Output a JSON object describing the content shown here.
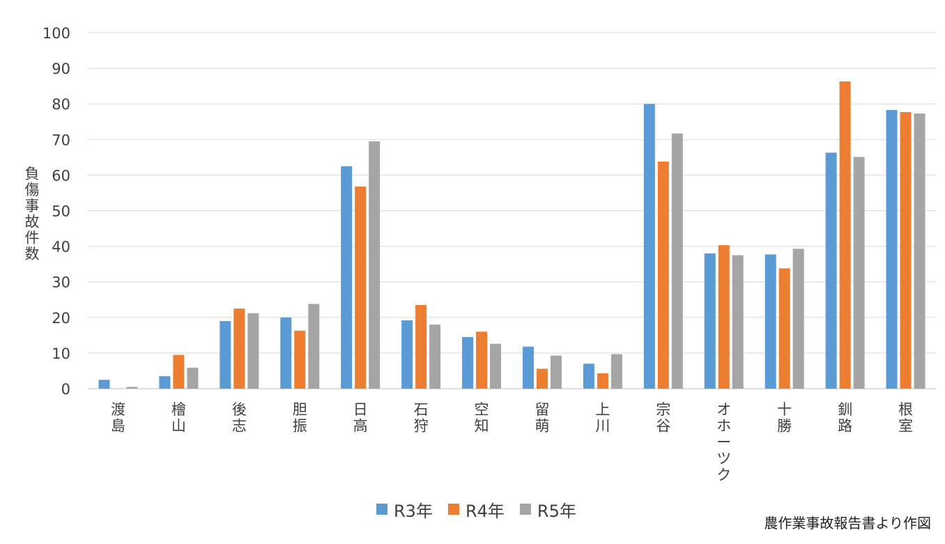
{
  "chart_data": {
    "type": "bar",
    "title": "",
    "xlabel": "",
    "ylabel": "負傷事故件数",
    "ylim": [
      0,
      100
    ],
    "yticks": [
      0,
      10,
      20,
      30,
      40,
      50,
      60,
      70,
      80,
      90,
      100
    ],
    "grid": true,
    "legend_position": "bottom",
    "categories": [
      "渡島",
      "檜山",
      "後志",
      "胆振",
      "日高",
      "石狩",
      "空知",
      "留萌",
      "上川",
      "宗谷",
      "オホーツク",
      "十勝",
      "釧路",
      "根室"
    ],
    "series": [
      {
        "name": "R3年",
        "color": "#5B9BD5",
        "values": [
          2.5,
          3.5,
          19,
          20,
          62.5,
          19.2,
          14.5,
          11.8,
          7,
          80,
          38,
          37.7,
          66.3,
          78.3
        ]
      },
      {
        "name": "R4年",
        "color": "#ED7D31",
        "values": [
          0,
          9.5,
          22.5,
          16.3,
          56.8,
          23.5,
          16,
          5.6,
          4.3,
          63.8,
          40.3,
          33.8,
          86.3,
          77.7
        ]
      },
      {
        "name": "R5年",
        "color": "#A5A5A5",
        "values": [
          0.5,
          5.9,
          21.2,
          23.8,
          69.5,
          18,
          12.6,
          9.3,
          9.7,
          71.7,
          37.5,
          39.3,
          65.1,
          77.3
        ]
      }
    ]
  },
  "source_note": "農作業事故報告書より作図"
}
